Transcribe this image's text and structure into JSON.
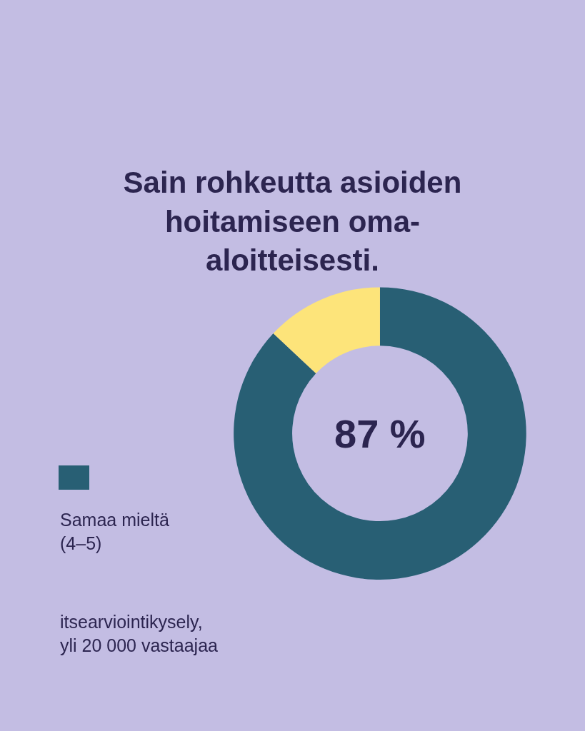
{
  "chart_data": {
    "type": "donut",
    "title": "Sain rohkeutta asioiden\nhoitamiseen oma-\naloitteisesti.",
    "categories": [
      "Samaa mieltä\n(4–5)",
      null
    ],
    "values": [
      87,
      13
    ],
    "colors": [
      "#285f74",
      "#fde47a"
    ],
    "value_labels": [
      "87 %",
      null
    ],
    "legend": "left",
    "annotations": [
      "itsearviointikysely,\nyli 20 000 vastaajaa"
    ]
  }
}
